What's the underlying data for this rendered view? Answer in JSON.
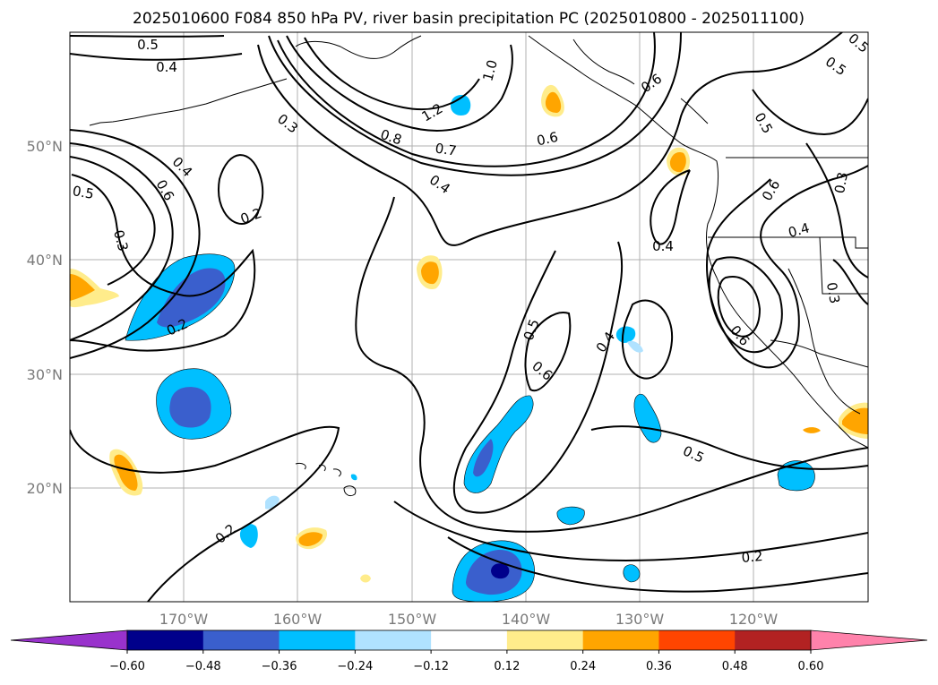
{
  "title": "2025010600 F084 850 hPa PV, river basin precipitation PC (2025010800 - 2025011100)",
  "lon_ticks": [
    "170°W",
    "160°W",
    "150°W",
    "140°W",
    "130°W",
    "120°W"
  ],
  "lat_ticks": [
    "50°N",
    "40°N",
    "30°N",
    "20°N"
  ],
  "colorbar": {
    "colors": [
      "#9932cc",
      "#00008b",
      "#3a5fcd",
      "#00bfff",
      "#b0e2ff",
      "#ffffff",
      "#ffec8b",
      "#ffa500",
      "#ff4500",
      "#b22222",
      "#ff82ab"
    ],
    "tick_labels": [
      "−0.60",
      "−0.48",
      "−0.36",
      "−0.24",
      "−0.12",
      "0.12",
      "0.24",
      "0.36",
      "0.48",
      "0.60"
    ]
  },
  "contour_labels": [
    {
      "text": "0.5"
    },
    {
      "text": "0.4"
    },
    {
      "text": "0.3"
    },
    {
      "text": "1.2"
    },
    {
      "text": "0.8"
    },
    {
      "text": "0.7"
    },
    {
      "text": "1.0"
    },
    {
      "text": "0.6"
    },
    {
      "text": "0.6"
    },
    {
      "text": "0.5"
    },
    {
      "text": "0.5"
    },
    {
      "text": "0.5"
    },
    {
      "text": "0.4"
    },
    {
      "text": "0.6"
    },
    {
      "text": "0.3"
    },
    {
      "text": "0.2"
    },
    {
      "text": "0.4"
    },
    {
      "text": "0.4"
    },
    {
      "text": "0.6"
    },
    {
      "text": "0.4"
    },
    {
      "text": "0.5"
    },
    {
      "text": "0.6"
    },
    {
      "text": "0.4"
    },
    {
      "text": "0.3"
    },
    {
      "text": "0.2"
    },
    {
      "text": "0.3"
    },
    {
      "text": "0.5"
    },
    {
      "text": "0.6"
    },
    {
      "text": "0.5"
    },
    {
      "text": "0.2"
    },
    {
      "text": "0.2"
    }
  ]
}
